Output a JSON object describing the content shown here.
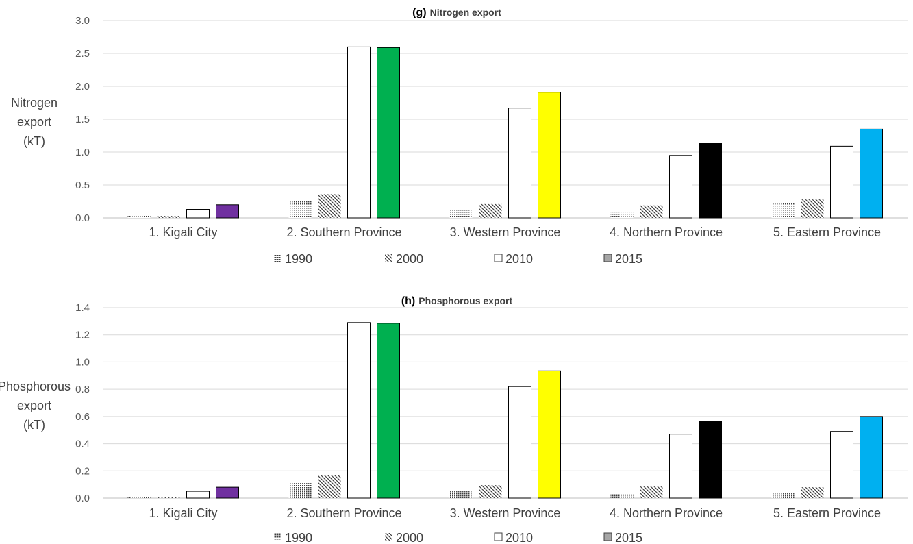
{
  "chart_data": [
    {
      "type": "bar",
      "title_prefix": "(g)",
      "title": "Nitrogen export",
      "ylabel": [
        "Nitrogen",
        "export",
        "(kT)"
      ],
      "ylim": [
        0,
        3.0
      ],
      "yticks": [
        "0.0",
        "0.5",
        "1.0",
        "1.5",
        "2.0",
        "2.5",
        "3.0"
      ],
      "ytick_values": [
        0,
        0.5,
        1.0,
        1.5,
        2.0,
        2.5,
        3.0
      ],
      "grid": true,
      "legend_position": "bottom",
      "categories": [
        "1. Kigali City",
        "2. Southern Province",
        "3. Western Province",
        "4. Northern Province",
        "5. Eastern Province"
      ],
      "province_colors": [
        "#7030a0",
        "#00b050",
        "#ffff00",
        "#000000",
        "#00b0f0"
      ],
      "series": [
        {
          "name": "1990",
          "pattern": "dots",
          "values": [
            0.04,
            0.25,
            0.12,
            0.08,
            0.22
          ]
        },
        {
          "name": "2000",
          "pattern": "diagonal",
          "values": [
            0.03,
            0.36,
            0.21,
            0.19,
            0.28
          ]
        },
        {
          "name": "2010",
          "pattern": "white",
          "values": [
            0.13,
            2.6,
            1.67,
            0.95,
            1.09
          ]
        },
        {
          "name": "2015",
          "pattern": "province-color",
          "values": [
            0.2,
            2.59,
            1.91,
            1.14,
            1.35
          ]
        }
      ]
    },
    {
      "type": "bar",
      "title_prefix": "(h)",
      "title": "Phosphorous export",
      "ylabel": [
        "Phosphorous",
        "export",
        "(kT)"
      ],
      "ylim": [
        0,
        1.4
      ],
      "yticks": [
        "0.0",
        "0.2",
        "0.4",
        "0.6",
        "0.8",
        "1.0",
        "1.2",
        "1.4"
      ],
      "ytick_values": [
        0,
        0.2,
        0.4,
        0.6,
        0.8,
        1.0,
        1.2,
        1.4
      ],
      "grid": true,
      "legend_position": "bottom",
      "categories": [
        "1. Kigali City",
        "2. Southern Province",
        "3. Western Province",
        "4. Northern Province",
        "5. Eastern Province"
      ],
      "province_colors": [
        "#7030a0",
        "#00b050",
        "#ffff00",
        "#000000",
        "#00b0f0"
      ],
      "series": [
        {
          "name": "1990",
          "pattern": "dots",
          "values": [
            0.005,
            0.11,
            0.05,
            0.03,
            0.035
          ]
        },
        {
          "name": "2000",
          "pattern": "diagonal",
          "values": [
            0.005,
            0.17,
            0.095,
            0.085,
            0.08
          ]
        },
        {
          "name": "2010",
          "pattern": "white",
          "values": [
            0.05,
            1.29,
            0.82,
            0.47,
            0.49
          ]
        },
        {
          "name": "2015",
          "pattern": "province-color",
          "values": [
            0.08,
            1.285,
            0.935,
            0.565,
            0.6
          ]
        }
      ]
    }
  ]
}
